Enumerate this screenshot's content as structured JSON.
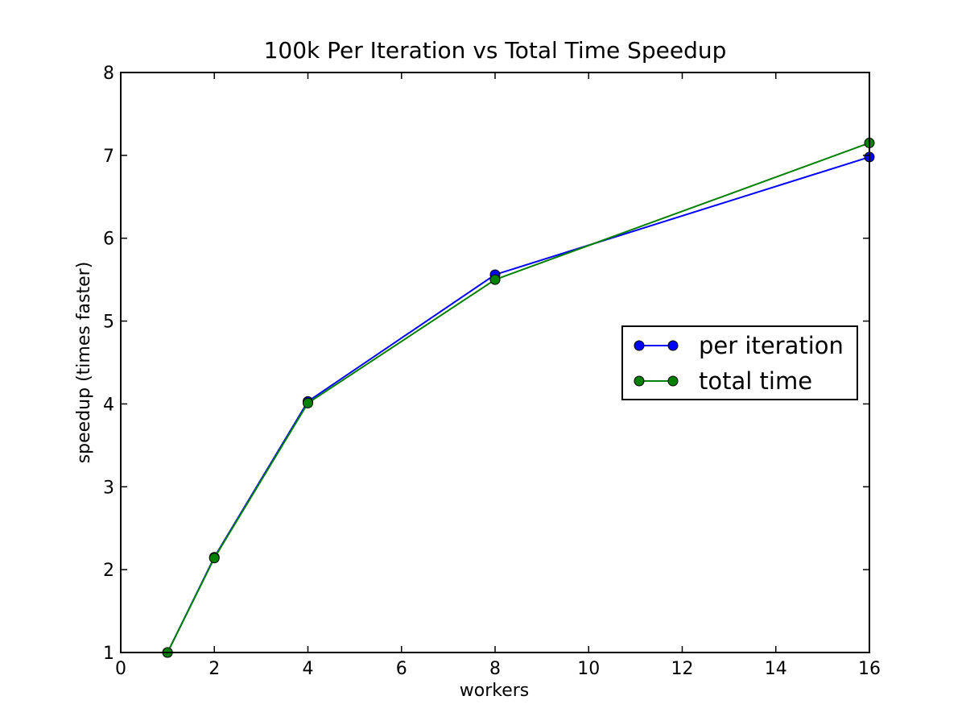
{
  "chart_data": {
    "type": "line",
    "title": "100k Per Iteration vs Total Time Speedup",
    "xlabel": "workers",
    "ylabel": "speedup (times faster)",
    "xlim": [
      0,
      16
    ],
    "ylim": [
      1,
      8
    ],
    "xticks": [
      0,
      2,
      4,
      6,
      8,
      10,
      12,
      14,
      16
    ],
    "yticks": [
      1,
      2,
      3,
      4,
      5,
      6,
      7,
      8
    ],
    "grid": false,
    "legend_position": "center-right",
    "x": [
      1,
      2,
      4,
      8,
      16
    ],
    "series": [
      {
        "name": "per iteration",
        "color": "#0000ff",
        "marker": "circle",
        "values": [
          1.0,
          2.15,
          4.03,
          5.56,
          6.98
        ]
      },
      {
        "name": "total time",
        "color": "#008000",
        "marker": "circle",
        "values": [
          1.0,
          2.14,
          4.01,
          5.5,
          7.15
        ]
      }
    ]
  }
}
